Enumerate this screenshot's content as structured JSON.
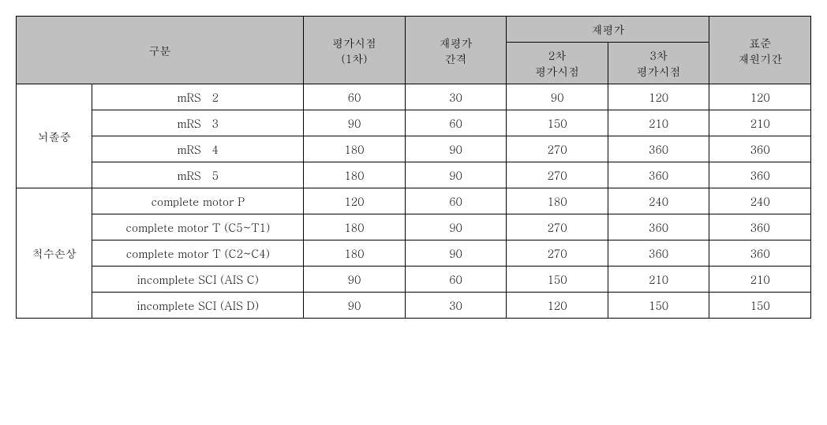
{
  "header": {
    "row1": {
      "category": "구분",
      "eval_time": "평가시점\n(1차)",
      "reeval_interval": "재평가\n간격",
      "reeval": "재평가",
      "std_period": "표준\n재원기간"
    },
    "row2": {
      "second_eval": "2차\n평가시점",
      "third_eval": "3차\n평가시점"
    }
  },
  "groups": [
    {
      "name": "뇌졸중",
      "rows": [
        {
          "label": "mRS　2",
          "c1": "60",
          "c2": "30",
          "c3": "90",
          "c4": "120",
          "c5": "120"
        },
        {
          "label": "mRS　3",
          "c1": "90",
          "c2": "60",
          "c3": "150",
          "c4": "210",
          "c5": "210"
        },
        {
          "label": "mRS　4",
          "c1": "180",
          "c2": "90",
          "c3": "270",
          "c4": "360",
          "c5": "360"
        },
        {
          "label": "mRS　5",
          "c1": "180",
          "c2": "90",
          "c3": "270",
          "c4": "360",
          "c5": "360"
        }
      ]
    },
    {
      "name": "척수손상",
      "rows": [
        {
          "label": "complete motor P",
          "c1": "120",
          "c2": "60",
          "c3": "180",
          "c4": "240",
          "c5": "240"
        },
        {
          "label": "complete motor T (C5~T1)",
          "c1": "180",
          "c2": "90",
          "c3": "270",
          "c4": "360",
          "c5": "360"
        },
        {
          "label": "complete motor T (C2~C4)",
          "c1": "180",
          "c2": "90",
          "c3": "270",
          "c4": "360",
          "c5": "360"
        },
        {
          "label": "incomplete SCI (AIS C)",
          "c1": "90",
          "c2": "60",
          "c3": "150",
          "c4": "210",
          "c5": "210"
        },
        {
          "label": "incomplete SCI (AIS D)",
          "c1": "90",
          "c2": "30",
          "c3": "120",
          "c4": "150",
          "c5": "150"
        }
      ]
    }
  ]
}
